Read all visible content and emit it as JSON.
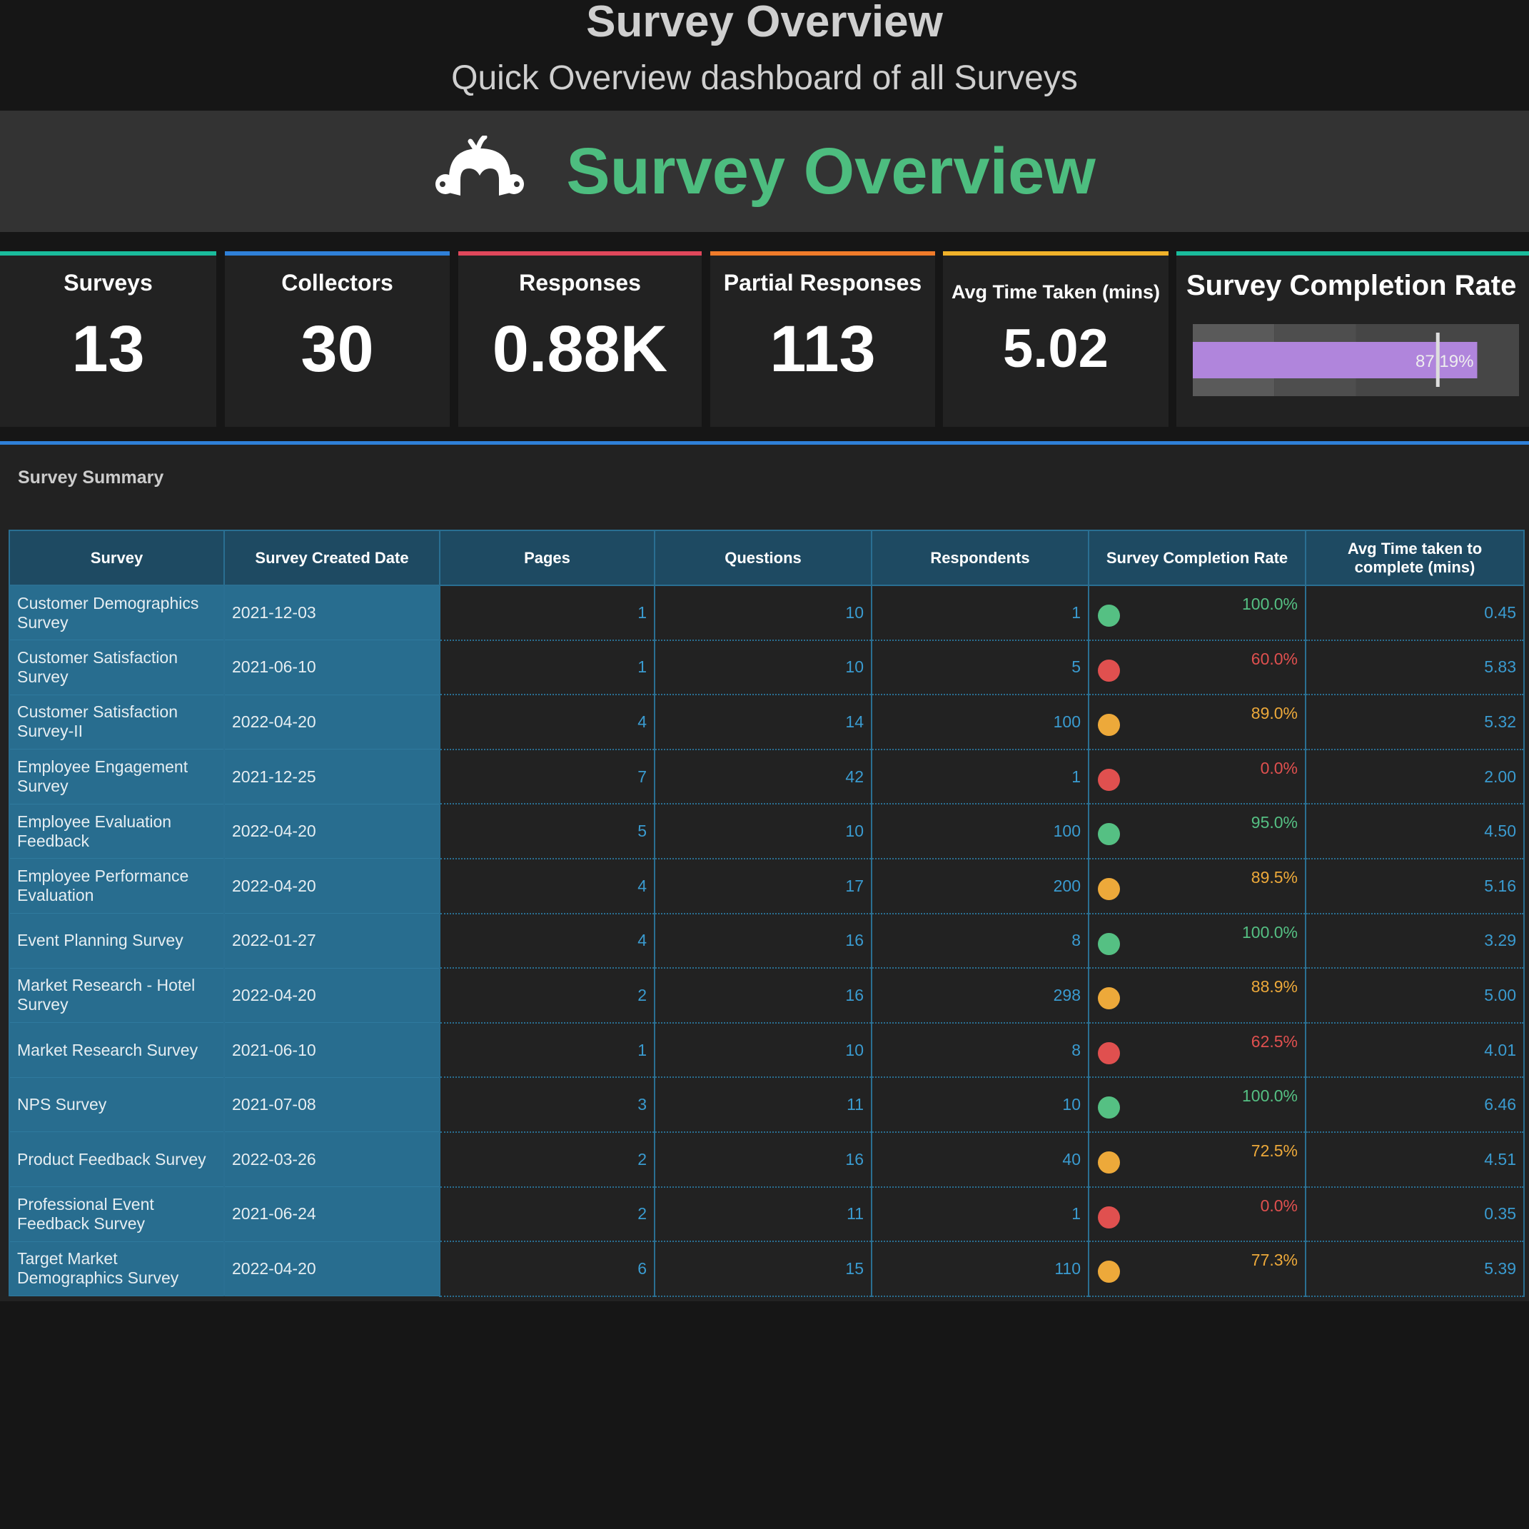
{
  "header": {
    "title": "Survey Overview",
    "subtitle": "Quick Overview dashboard of all Surveys"
  },
  "banner": {
    "logo": "surveymonkey-logo",
    "title": "Survey Overview",
    "title_color": "#4dbd7f"
  },
  "kpis": [
    {
      "label": "Surveys",
      "value": "13",
      "color": "#1abc9c"
    },
    {
      "label": "Collectors",
      "value": "30",
      "color": "#2f80d8"
    },
    {
      "label": "Responses",
      "value": "0.88K",
      "color": "#e0475b"
    },
    {
      "label": "Partial Responses",
      "value": "113",
      "color": "#f07b2a"
    },
    {
      "label": "Avg Time Taken (mins)",
      "value": "5.02",
      "color": "#f0b22a"
    }
  ],
  "completion": {
    "label": "Survey Completion Rate",
    "value_text": "87.19%",
    "value": 87.19,
    "target": 75,
    "bands": [
      25,
      50,
      100
    ],
    "range": [
      0,
      100
    ],
    "bar_color": "#b085dc",
    "color": "#1abc9c"
  },
  "summary": {
    "title": "Survey Summary",
    "columns": [
      "Survey",
      "Survey Created Date",
      "Pages",
      "Questions",
      "Respondents",
      "Survey Completion Rate",
      "Avg Time taken to complete (mins)"
    ],
    "status_colors": {
      "green": "#55c083",
      "red": "#e0504f",
      "orange": "#eda93a"
    },
    "rows": [
      [
        "Customer Demographics Survey",
        "2021-12-03",
        "1",
        "10",
        "1",
        "100.0%",
        "0.45",
        "green"
      ],
      [
        "Customer Satisfaction Survey",
        "2021-06-10",
        "1",
        "10",
        "5",
        "60.0%",
        "5.83",
        "red"
      ],
      [
        "Customer Satisfaction Survey-II",
        "2022-04-20",
        "4",
        "14",
        "100",
        "89.0%",
        "5.32",
        "orange"
      ],
      [
        "Employee Engagement Survey",
        "2021-12-25",
        "7",
        "42",
        "1",
        "0.0%",
        "2.00",
        "red"
      ],
      [
        "Employee Evaluation Feedback",
        "2022-04-20",
        "5",
        "10",
        "100",
        "95.0%",
        "4.50",
        "green"
      ],
      [
        "Employee Performance Evaluation",
        "2022-04-20",
        "4",
        "17",
        "200",
        "89.5%",
        "5.16",
        "orange"
      ],
      [
        "Event Planning Survey",
        "2022-01-27",
        "4",
        "16",
        "8",
        "100.0%",
        "3.29",
        "green"
      ],
      [
        "Market Research - Hotel Survey",
        "2022-04-20",
        "2",
        "16",
        "298",
        "88.9%",
        "5.00",
        "orange"
      ],
      [
        "Market Research Survey",
        "2021-06-10",
        "1",
        "10",
        "8",
        "62.5%",
        "4.01",
        "red"
      ],
      [
        "NPS Survey",
        "2021-07-08",
        "3",
        "11",
        "10",
        "100.0%",
        "6.46",
        "green"
      ],
      [
        "Product Feedback Survey",
        "2022-03-26",
        "2",
        "16",
        "40",
        "72.5%",
        "4.51",
        "orange"
      ],
      [
        "Professional Event Feedback Survey",
        "2021-06-24",
        "2",
        "11",
        "1",
        "0.0%",
        "0.35",
        "red"
      ],
      [
        "Target Market Demographics Survey",
        "2022-04-20",
        "6",
        "15",
        "110",
        "77.3%",
        "5.39",
        "orange"
      ]
    ]
  }
}
